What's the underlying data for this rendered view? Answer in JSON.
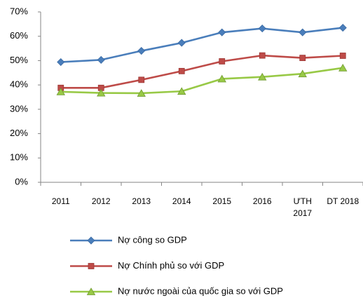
{
  "chart_data": {
    "type": "line",
    "categories": [
      "2011",
      "2012",
      "2013",
      "2014",
      "2015",
      "2016",
      "ƯTH\n2017",
      "DT 2018"
    ],
    "series": [
      {
        "name": "Nợ công so GDP",
        "color": "#4a7ebb",
        "marker": "diamond",
        "values": [
          49.4,
          50.3,
          54.0,
          57.3,
          61.6,
          63.2,
          61.6,
          63.5
        ]
      },
      {
        "name": "Nợ Chính phủ so với GDP",
        "color": "#be4b48",
        "marker": "square",
        "values": [
          38.8,
          38.8,
          42.1,
          45.7,
          49.7,
          52.1,
          51.1,
          52.0
        ]
      },
      {
        "name": "Nợ nước ngoài của quốc gia so với GDP",
        "color": "#98c946",
        "marker": "triangle",
        "values": [
          37.2,
          36.7,
          36.6,
          37.4,
          42.5,
          43.3,
          44.6,
          47.0
        ]
      }
    ],
    "ylim": [
      0,
      70
    ],
    "yticks": [
      {
        "value": 0,
        "label": "0%"
      },
      {
        "value": 10,
        "label": "10%"
      },
      {
        "value": 20,
        "label": "20%"
      },
      {
        "value": 30,
        "label": "30%"
      },
      {
        "value": 40,
        "label": "40%"
      },
      {
        "value": 50,
        "label": "50%"
      },
      {
        "value": 60,
        "label": "60%"
      },
      {
        "value": 70,
        "label": "70%"
      }
    ],
    "grid": false,
    "legend": "bottom"
  }
}
